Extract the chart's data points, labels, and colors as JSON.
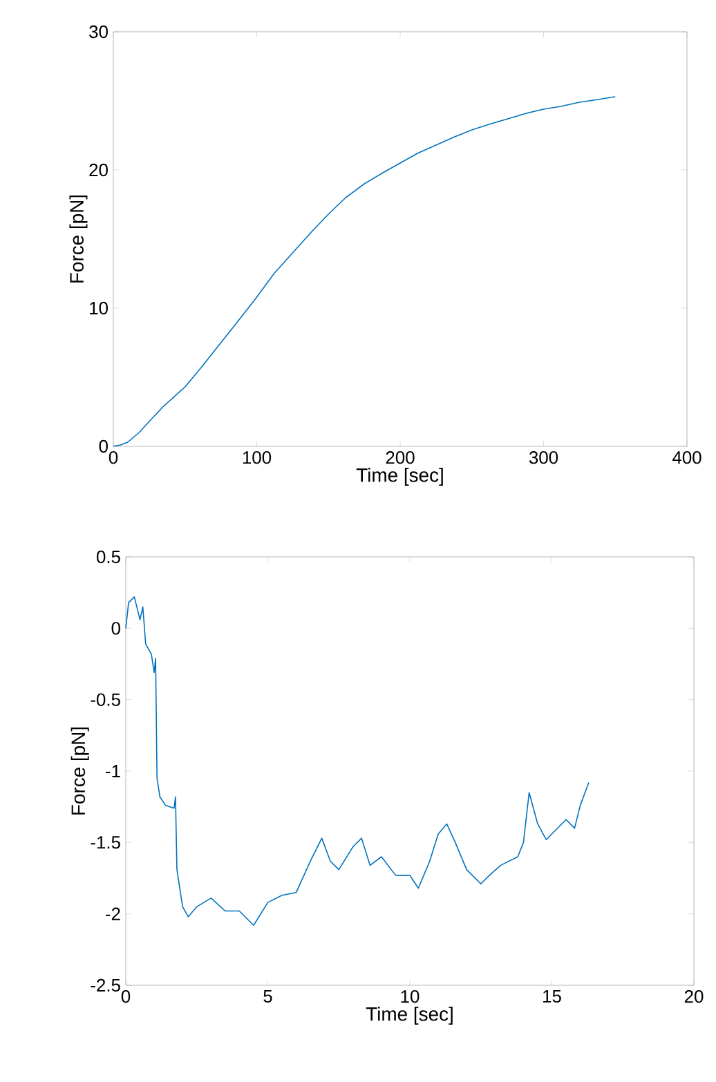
{
  "chart_data": [
    {
      "type": "line",
      "xlabel": "Time [sec]",
      "ylabel": "Force [pN]",
      "color": "#0072bd",
      "x": [
        0,
        5,
        10,
        18,
        25,
        35,
        50,
        62,
        75,
        88,
        100,
        112,
        125,
        138,
        150,
        162,
        175,
        188,
        200,
        212,
        225,
        238,
        250,
        262,
        275,
        288,
        300,
        312,
        325,
        338,
        350
      ],
      "values": [
        0,
        0.1,
        0.3,
        1.0,
        1.8,
        2.9,
        4.3,
        5.8,
        7.5,
        9.2,
        10.8,
        12.5,
        14.0,
        15.5,
        16.8,
        18.0,
        19.0,
        19.8,
        20.5,
        21.2,
        21.8,
        22.4,
        22.9,
        23.3,
        23.7,
        24.1,
        24.4,
        24.6,
        24.9,
        25.1,
        25.3
      ],
      "xlim": [
        0,
        400
      ],
      "ylim": [
        0,
        30
      ],
      "xticks": [
        0,
        100,
        200,
        300,
        400
      ],
      "yticks": [
        0,
        10,
        20,
        30
      ]
    },
    {
      "type": "line",
      "xlabel": "Time [sec]",
      "ylabel": "Force [pN]",
      "color": "#0072bd",
      "x": [
        0,
        0.1,
        0.3,
        0.5,
        0.6,
        0.7,
        0.9,
        1.0,
        1.05,
        1.1,
        1.2,
        1.4,
        1.7,
        1.75,
        1.8,
        2.0,
        2.2,
        2.5,
        3.0,
        3.5,
        4.0,
        4.5,
        5.0,
        5.5,
        6.0,
        6.5,
        6.9,
        7.2,
        7.5,
        8.0,
        8.3,
        8.6,
        9.0,
        9.5,
        10.0,
        10.3,
        10.7,
        11.0,
        11.3,
        11.6,
        12.0,
        12.5,
        12.8,
        13.2,
        13.8,
        14.0,
        14.2,
        14.5,
        14.8,
        15.2,
        15.5,
        15.8,
        16.0,
        16.3
      ],
      "values": [
        0,
        0.18,
        0.22,
        0.06,
        0.15,
        -0.11,
        -0.18,
        -0.31,
        -0.21,
        -1.05,
        -1.18,
        -1.24,
        -1.26,
        -1.18,
        -1.69,
        -1.95,
        -2.02,
        -1.95,
        -1.89,
        -1.98,
        -1.98,
        -2.08,
        -1.92,
        -1.87,
        -1.85,
        -1.63,
        -1.47,
        -1.63,
        -1.69,
        -1.53,
        -1.47,
        -1.66,
        -1.6,
        -1.73,
        -1.73,
        -1.82,
        -1.63,
        -1.44,
        -1.37,
        -1.5,
        -1.69,
        -1.79,
        -1.73,
        -1.66,
        -1.6,
        -1.5,
        -1.15,
        -1.37,
        -1.48,
        -1.4,
        -1.34,
        -1.4,
        -1.24,
        -1.08
      ],
      "xlim": [
        0,
        20
      ],
      "ylim": [
        -2.5,
        0.5
      ],
      "xticks": [
        0,
        5,
        10,
        15,
        20
      ],
      "yticks": [
        -2.5,
        -2,
        -1.5,
        -1,
        -0.5,
        0,
        0.5
      ]
    }
  ]
}
